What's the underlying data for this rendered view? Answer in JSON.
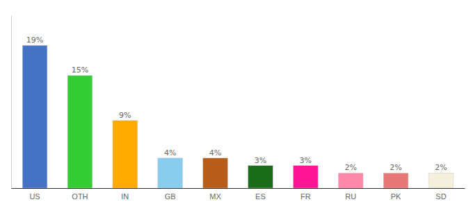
{
  "chart_data": {
    "type": "bar",
    "categories": [
      "US",
      "OTH",
      "IN",
      "GB",
      "MX",
      "ES",
      "FR",
      "RU",
      "PK",
      "SD"
    ],
    "values": [
      19,
      15,
      9,
      4,
      4,
      3,
      3,
      2,
      2,
      2
    ],
    "value_labels": [
      "19%",
      "15%",
      "9%",
      "4%",
      "4%",
      "3%",
      "3%",
      "2%",
      "2%",
      "2%"
    ],
    "colors": [
      "#4472c4",
      "#33cc33",
      "#ffaa00",
      "#88ccee",
      "#b85c1a",
      "#1a6e1a",
      "#ff1493",
      "#ff88aa",
      "#e87878",
      "#f5f0dc"
    ],
    "ylim": [
      0,
      23
    ],
    "grid": false,
    "data_labels": true,
    "tick_labels": "x"
  }
}
